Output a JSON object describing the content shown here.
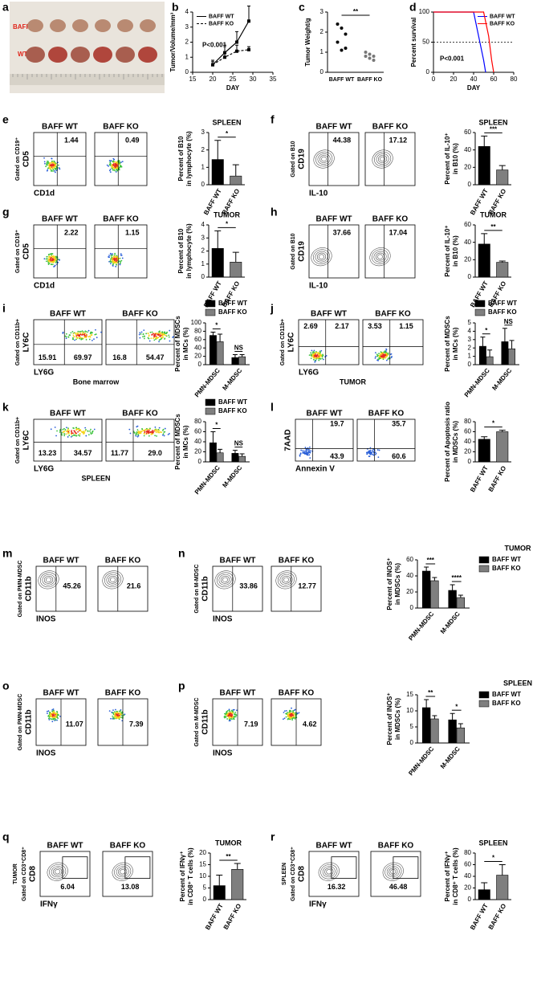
{
  "photo": {
    "label": "a",
    "rows": [
      "BAFF KO",
      "WT"
    ]
  },
  "chart_data": [
    {
      "type": "line",
      "label": "b",
      "ylabel": [
        "Tumor/Volume/mm³"
      ],
      "xlabel": "DAY",
      "annotation": "P<0.001",
      "legend": "upper left",
      "xlim": [
        15,
        35
      ],
      "xticks": [
        15,
        20,
        25,
        30,
        35
      ],
      "ylim": [
        0,
        4
      ],
      "yticks": [
        0,
        1,
        2,
        3,
        4
      ],
      "x": [
        20,
        23,
        26,
        29
      ],
      "series": [
        {
          "name": "BAFF WT",
          "color": "#000000",
          "values": [
            0.5,
            1.3,
            2.0,
            3.4
          ],
          "errors": [
            0.3,
            0.5,
            0.7,
            1.0
          ]
        },
        {
          "name": "BAFF KO",
          "color": "#000000",
          "values": [
            0.5,
            1.0,
            1.4,
            1.5
          ],
          "errors": [
            0.2,
            0.3,
            0.4,
            0.2
          ]
        }
      ]
    },
    {
      "type": "strip",
      "label": "c",
      "ylabel": [
        "Tumor Weight/g"
      ],
      "categories": [
        "BAFF WT",
        "BAFF KO"
      ],
      "annotation": "**",
      "ylim": [
        0,
        3
      ],
      "yticks": [
        0,
        1,
        2,
        3
      ],
      "points": [
        [
          2.4,
          2.2,
          1.9,
          1.5,
          1.1,
          1.2
        ],
        [
          1.0,
          0.9,
          0.8,
          0.8,
          0.7,
          0.6
        ]
      ]
    },
    {
      "type": "line",
      "label": "d",
      "ylabel": [
        "Percent survival"
      ],
      "xlabel": "DAY",
      "annotation": "P<0.001",
      "legend": "upper right",
      "xlim": [
        0,
        80
      ],
      "xticks": [
        0,
        20,
        40,
        60,
        80
      ],
      "ylim": [
        0,
        100
      ],
      "yticks": [
        0,
        50,
        100
      ],
      "series": [
        {
          "name": "BAFF WT",
          "color": "#0000ff",
          "x": [
            0,
            40,
            45,
            50,
            52
          ],
          "values": [
            100,
            100,
            60,
            20,
            0
          ]
        },
        {
          "name": "BAFF KO",
          "color": "#ff0000",
          "x": [
            0,
            50,
            55,
            58,
            60
          ],
          "values": [
            100,
            100,
            60,
            20,
            0
          ]
        }
      ]
    },
    {
      "type": "bar",
      "title": "SPLEEN",
      "ylabel": [
        "Percent of B10",
        "in lymphocyte (%)"
      ],
      "categories": [
        "BAFF WT",
        "BAFF KO"
      ],
      "colors": [
        "#000000",
        "#7f7f7f"
      ],
      "values": [
        1.45,
        0.5
      ],
      "errors": [
        1.1,
        0.65
      ],
      "ylim": [
        0,
        3
      ],
      "yticks": [
        0,
        1,
        2,
        3
      ],
      "significance": "*"
    },
    {
      "type": "bar",
      "title": "SPLEEN",
      "ylabel": [
        "Percent of IL-10⁺",
        "in B10 (%)"
      ],
      "categories": [
        "BAFF WT",
        "BAFF KO"
      ],
      "colors": [
        "#000000",
        "#7f7f7f"
      ],
      "values": [
        44,
        17
      ],
      "errors": [
        12,
        5
      ],
      "ylim": [
        0,
        60
      ],
      "yticks": [
        0,
        20,
        40,
        60
      ],
      "significance": "***"
    },
    {
      "type": "bar",
      "title": "TUMOR",
      "ylabel": [
        "Percent of B10",
        "in lymphocyte (%)"
      ],
      "categories": [
        "BAFF WT",
        "BAFF KO"
      ],
      "colors": [
        "#000000",
        "#7f7f7f"
      ],
      "values": [
        2.2,
        1.15
      ],
      "errors": [
        1.35,
        0.75
      ],
      "ylim": [
        0,
        4
      ],
      "yticks": [
        0,
        1,
        2,
        3,
        4
      ],
      "significance": "*"
    },
    {
      "type": "bar",
      "title": "TUMOR",
      "ylabel": [
        "Percent of IL-10⁺",
        "in B10 (%)"
      ],
      "categories": [
        "BAFF WT",
        "BAFF KO"
      ],
      "colors": [
        "#000000",
        "#7f7f7f"
      ],
      "values": [
        38,
        17
      ],
      "errors": [
        12,
        1.5
      ],
      "ylim": [
        0,
        60
      ],
      "yticks": [
        0,
        20,
        40,
        60
      ],
      "significance": "**"
    },
    {
      "type": "grouped_bar",
      "ylabel": [
        "Percent of MDSCs",
        "in MCs (%)"
      ],
      "categories": [
        "PMN-MDSC",
        "M-MDSC"
      ],
      "series": [
        {
          "name": "BAFF WT",
          "color": "#000000",
          "values": [
            70,
            17
          ],
          "errors": [
            8,
            7
          ]
        },
        {
          "name": "BAFF KO",
          "color": "#7f7f7f",
          "values": [
            55,
            19
          ],
          "errors": [
            18,
            5
          ]
        }
      ],
      "ylim": [
        0,
        100
      ],
      "yticks": [
        0,
        20,
        40,
        60,
        80,
        100
      ],
      "significance": [
        "*",
        "NS"
      ]
    },
    {
      "type": "grouped_bar",
      "ylabel": [
        "Percent of MDSCs",
        "in MCs (%)"
      ],
      "categories": [
        "PMN-MDSC",
        "M-MDSC"
      ],
      "series": [
        {
          "name": "BAFF WT",
          "color": "#000000",
          "values": [
            2.2,
            2.75
          ],
          "errors": [
            1.1,
            1.6
          ]
        },
        {
          "name": "BAFF KO",
          "color": "#7f7f7f",
          "values": [
            0.95,
            1.9
          ],
          "errors": [
            0.8,
            1.0
          ]
        }
      ],
      "ylim": [
        0,
        5
      ],
      "yticks": [
        0,
        1,
        2,
        3,
        4,
        5
      ],
      "significance": [
        "*",
        "NS"
      ]
    },
    {
      "type": "grouped_bar",
      "ylabel": [
        "Percent of MDSCs",
        "in MCs (%)"
      ],
      "categories": [
        "PMN-MDSC",
        "M-MDSC"
      ],
      "series": [
        {
          "name": "BAFF WT",
          "color": "#000000",
          "values": [
            38,
            17
          ],
          "errors": [
            22,
            6
          ]
        },
        {
          "name": "BAFF KO",
          "color": "#7f7f7f",
          "values": [
            18,
            11
          ],
          "errors": [
            7,
            5
          ]
        }
      ],
      "ylim": [
        0,
        80
      ],
      "yticks": [
        0,
        20,
        40,
        60,
        80
      ],
      "significance": [
        "*",
        "NS"
      ]
    },
    {
      "type": "bar",
      "ylabel": [
        "Percent of Apoptosis ratio",
        "in MDSCs (%)"
      ],
      "categories": [
        "BAFF WT",
        "BAFF KO"
      ],
      "colors": [
        "#000000",
        "#7f7f7f"
      ],
      "values": [
        45,
        60
      ],
      "errors": [
        5,
        3
      ],
      "ylim": [
        0,
        80
      ],
      "yticks": [
        0,
        20,
        40,
        60,
        80
      ],
      "significance": "*"
    },
    {
      "type": "grouped_bar",
      "title": "TUMOR",
      "ylabel": [
        "Percent of INOS⁺",
        "in MDSCs (%)"
      ],
      "categories": [
        "PMN-MDSC",
        "M-MDSC"
      ],
      "series": [
        {
          "name": "BAFF WT",
          "color": "#000000",
          "values": [
            46,
            22
          ],
          "errors": [
            5,
            7
          ]
        },
        {
          "name": "BAFF KO",
          "color": "#7f7f7f",
          "values": [
            34,
            13
          ],
          "errors": [
            4,
            3
          ]
        }
      ],
      "ylim": [
        0,
        60
      ],
      "yticks": [
        0,
        20,
        40,
        60
      ],
      "significance": [
        "***",
        "****"
      ]
    },
    {
      "type": "grouped_bar",
      "title": "SPLEEN",
      "ylabel": [
        "Percent of INOS⁺",
        "in MDSCs (%)"
      ],
      "categories": [
        "PMN-MDSC",
        "M-MDSC"
      ],
      "series": [
        {
          "name": "BAFF WT",
          "color": "#000000",
          "values": [
            11,
            7.2
          ],
          "errors": [
            2.5,
            2
          ]
        },
        {
          "name": "BAFF KO",
          "color": "#7f7f7f",
          "values": [
            7.5,
            4.7
          ],
          "errors": [
            1,
            1.3
          ]
        }
      ],
      "ylim": [
        0,
        15
      ],
      "yticks": [
        0,
        5,
        10,
        15
      ],
      "significance": [
        "**",
        "*"
      ]
    },
    {
      "type": "bar",
      "title": "TUMOR",
      "ylabel": [
        "Percent of IFNγ⁺",
        "in CD8⁺ T cells (%)"
      ],
      "categories": [
        "BAFF WT",
        "BAFF KO"
      ],
      "colors": [
        "#000000",
        "#7f7f7f"
      ],
      "values": [
        6,
        13
      ],
      "errors": [
        4.5,
        2.5
      ],
      "ylim": [
        0,
        20
      ],
      "yticks": [
        0,
        5,
        10,
        15,
        20
      ],
      "significance": "**"
    },
    {
      "type": "bar",
      "title": "SPLEEN",
      "ylabel": [
        "Percent of IFNγ⁺",
        "in CD8⁺ T cells (%)"
      ],
      "categories": [
        "BAFF WT",
        "BAFF KO"
      ],
      "colors": [
        "#000000",
        "#7f7f7f"
      ],
      "values": [
        17,
        42
      ],
      "errors": [
        12,
        18
      ],
      "ylim": [
        0,
        80
      ],
      "yticks": [
        0,
        20,
        40,
        60,
        80
      ],
      "significance": "*"
    }
  ],
  "flow_panels": [
    {
      "label": "e",
      "ylabel": [
        "Gated on CD19⁺",
        "CD5"
      ],
      "xlabel": "CD1d",
      "titles": [
        "BAFF WT",
        "BAFF KO"
      ],
      "values": [
        [
          "1.44"
        ],
        [
          "0.49"
        ]
      ]
    },
    {
      "label": "f",
      "ylabel": [
        "Gated on B10",
        "CD19"
      ],
      "xlabel": "IL-10",
      "titles": [
        "BAFF WT",
        "BAFF KO"
      ],
      "values": [
        [
          "44.38"
        ],
        [
          "17.12"
        ]
      ]
    },
    {
      "label": "g",
      "ylabel": [
        "Gated on CD19⁺",
        "CD5"
      ],
      "xlabel": "CD1d",
      "titles": [
        "BAFF WT",
        "BAFF KO"
      ],
      "values": [
        [
          "2.22"
        ],
        [
          "1.15"
        ]
      ]
    },
    {
      "label": "h",
      "ylabel": [
        "Gated on B10",
        "CD19"
      ],
      "xlabel": "IL-10",
      "titles": [
        "BAFF WT",
        "BAFF KO"
      ],
      "values": [
        [
          "37.66"
        ],
        [
          "17.04"
        ]
      ]
    },
    {
      "label": "i",
      "ylabel": [
        "Gated on CD11b+",
        "LY6C"
      ],
      "xlabel": "LY6G",
      "note": "Bone marrow",
      "titles": [
        "BAFF WT",
        "BAFF KO"
      ],
      "values": [
        [
          "15.91",
          "69.97"
        ],
        [
          "16.8",
          "54.47"
        ]
      ]
    },
    {
      "label": "j",
      "ylabel": [
        "Gated on CD11b+",
        "LY6C"
      ],
      "xlabel": "LY6G",
      "note": "TUMOR",
      "titles": [
        "BAFF WT",
        "BAFF KO"
      ],
      "values": [
        [
          "2.69",
          "2.17"
        ],
        [
          "3.53",
          "1.15"
        ]
      ]
    },
    {
      "label": "k",
      "ylabel": [
        "Gated on CD11b+",
        "LY6C"
      ],
      "xlabel": "LY6G",
      "note": "SPLEEN",
      "titles": [
        "BAFF WT",
        "BAFF KO"
      ],
      "values": [
        [
          "13.23",
          "34.57"
        ],
        [
          "11.77",
          "29.0"
        ]
      ]
    },
    {
      "label": "l",
      "ylabel": [
        "7AAD"
      ],
      "xlabel": "Annexin V",
      "titles": [
        "BAFF WT",
        "BAFF KO"
      ],
      "values": [
        [
          "19.7",
          "43.9"
        ],
        [
          "35.7",
          "60.6"
        ]
      ]
    },
    {
      "label": "m",
      "ylabel": [
        "Gated on PMN-MDSC",
        "CD11b"
      ],
      "xlabel": "INOS",
      "titles": [
        "BAFF WT",
        "BAFF KO"
      ],
      "values": [
        [
          "45.26"
        ],
        [
          "21.6"
        ]
      ]
    },
    {
      "label": "n",
      "ylabel": [
        "Gated on M-MDSC",
        "CD11b"
      ],
      "xlabel": "INOS",
      "titles": [
        "BAFF WT",
        "BAFF KO"
      ],
      "values": [
        [
          "33.86"
        ],
        [
          "12.77"
        ]
      ]
    },
    {
      "label": "o",
      "ylabel": [
        "Gated on PMN-MDSC",
        "CD11b"
      ],
      "xlabel": "INOS",
      "titles": [
        "BAFF WT",
        "BAFF KO"
      ],
      "values": [
        [
          "11.07"
        ],
        [
          "7.39"
        ]
      ]
    },
    {
      "label": "p",
      "ylabel": [
        "Gated on M-MDSC",
        "CD11b"
      ],
      "xlabel": "INOS",
      "titles": [
        "BAFF WT",
        "BAFF KO"
      ],
      "values": [
        [
          "7.19"
        ],
        [
          "4.62"
        ]
      ]
    },
    {
      "label": "q",
      "ylabel": [
        "TUMOR",
        "Gated on CD3⁺CD8⁺",
        "CD8"
      ],
      "xlabel": "IFNγ",
      "titles": [
        "BAFF WT",
        "BAFF KO"
      ],
      "values": [
        [
          "6.04"
        ],
        [
          "13.08"
        ]
      ]
    },
    {
      "label": "r",
      "ylabel": [
        "SPLEEN",
        "Gated on CD3⁺CD8⁺",
        "CD8"
      ],
      "xlabel": "IFNγ",
      "titles": [
        "BAFF WT",
        "BAFF KO"
      ],
      "values": [
        [
          "16.32"
        ],
        [
          "46.48"
        ]
      ]
    }
  ]
}
